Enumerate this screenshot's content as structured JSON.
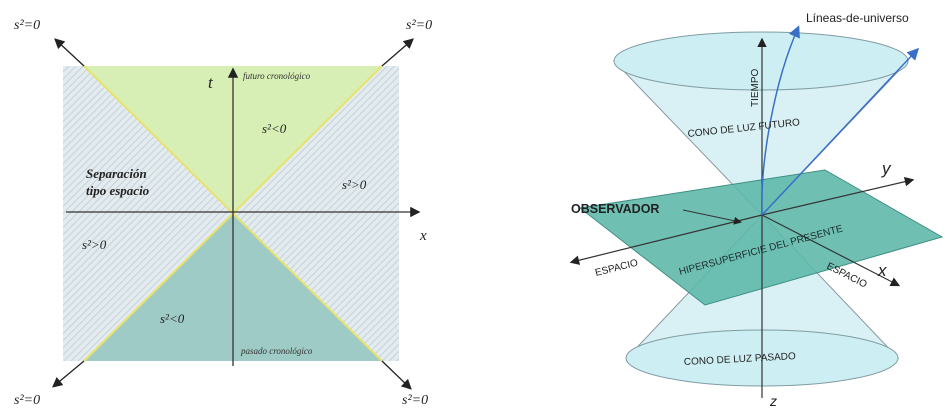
{
  "left_diagram": {
    "corner_labels": {
      "top_left": "s²=0",
      "top_right": "s²=0",
      "bottom_left": "s²=0",
      "bottom_right": "s²=0"
    },
    "axis_t": "t",
    "axis_x": "x",
    "future_label": "futuro cronológico",
    "past_label": "pasado cronológico",
    "future_region": "s²<0",
    "past_region": "s²<0",
    "right_region": "s²>0",
    "left_region": "s²>0",
    "spacelike_line1": "Separación",
    "spacelike_line2": "tipo espacio",
    "colors": {
      "future_fill": "#d7efb4",
      "past_fill": "#9fcbc6",
      "hatch_bg": "#e3ebef",
      "hatch_line": "#c4d2da",
      "light_line": "#e9e26a"
    }
  },
  "right_diagram": {
    "worldlines_label": "Líneas-de-universo",
    "time_label": "TIEMPO",
    "future_cone_label": "CONO DE LUZ FUTURO",
    "past_cone_label": "CONO DE LUZ PASADO",
    "observer_label": "OBSERVADOR",
    "hypersurface_label": "HIPERSUPERFICIE DEL PRESENTE",
    "space_left": "ESPACIO",
    "space_right": "ESPACIO",
    "axis_y": "y",
    "axis_x": "x",
    "axis_z": "z",
    "colors": {
      "cone_fill": "#d9f1f4",
      "plane_fill": "#5bb7a9",
      "worldline": "#3a6fc7"
    }
  }
}
